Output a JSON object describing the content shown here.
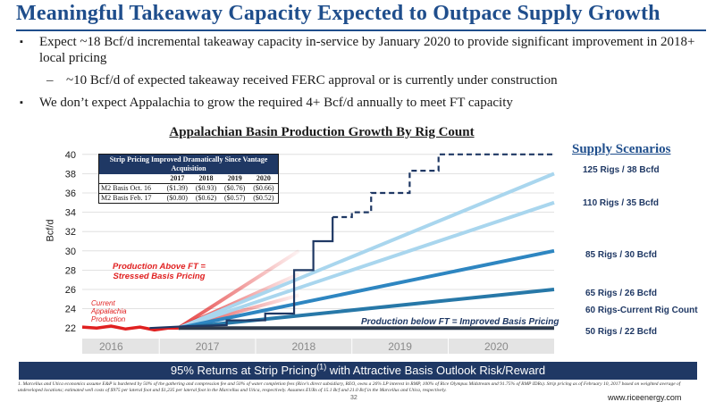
{
  "title": "Meaningful Takeaway Capacity Expected to Outpace Supply Growth",
  "bullets": [
    "Expect ~18 Bcf/d incremental takeaway capacity in-service by January 2020 to provide significant improvement in 2018+ local pricing",
    "~10 Bcf/d of expected takeaway received FERC approval or is currently under construction",
    "We don’t expect Appalachia to grow the required 4+ Bcf/d annually to meet FT capacity"
  ],
  "bullet_markers": {
    "main": "▪",
    "sub": "–"
  },
  "chart_title": "Appalachian Basin Production Growth By Rig Count",
  "panel": {
    "title": "Strip Pricing Improved Dramatically Since Vantage Acquisition",
    "years": [
      "2017",
      "2018",
      "2019",
      "2020"
    ],
    "rows": [
      {
        "label": "M2 Basis Oct. 16",
        "values": [
          "($1.39)",
          "($0.93)",
          "($0.76)",
          "($0.66)"
        ]
      },
      {
        "label": "M2 Basis Feb. 17",
        "values": [
          "($0.80)",
          "($0.62)",
          "($0.57)",
          "($0.52)"
        ]
      }
    ]
  },
  "scenario_title": "Supply Scenarios",
  "scenarios": [
    "125 Rigs / 38 Bcfd",
    "110 Rigs / 35 Bcfd",
    "85 Rigs / 30 Bcfd",
    "65 Rigs / 26 Bcfd",
    "60 Rigs-Current Rig Count",
    "50 Rigs / 22 Bcfd"
  ],
  "annotations": {
    "above_ft": "Production Above FT = Stressed Basis Pricing",
    "current": "Current Appalachia Production",
    "below_ft": "Production below FT = Improved Basis Pricing"
  },
  "banner": {
    "text": "95% Returns at Strip Pricing",
    "sup": "(1)",
    "rest": " with Attractive Basis Outlook Risk/Reward"
  },
  "footnote": "1.   Marcellus and Utica economics assume E&P is burdened by 50% of the gathering and compression fee and 50% of water completion fees (Rice’s direct subsidiary, REO, owns a 26% LP interest in RMP, 100% of Rice Olympus Midstream and 91.75% of RMP IDRs). Strip pricing as of February 10, 2017 based on weighted average of undeveloped locations; estimated well costs of $975 per lateral foot and $1,235 per lateral foot in the Marcellus and Utica, respectively. Assumes EURs of 15.1 Bcf and 21.0 Bcf in the Marcellus and Utica, respectively.",
  "page_number": "32",
  "website": "www.riceenergy.com",
  "colors": {
    "brand": "#1f4e8c",
    "navy": "#1f3864",
    "red": "#e02020"
  },
  "chart_data": {
    "type": "line",
    "ylabel": "Bcf/d",
    "xlabel": "",
    "ylim": [
      21,
      41
    ],
    "yticks": [
      22,
      24,
      26,
      28,
      30,
      32,
      34,
      36,
      38,
      40
    ],
    "xlim": [
      2015.7,
      2020.6
    ],
    "x_tick_labels": [
      "2016",
      "2017",
      "2018",
      "2019",
      "2020"
    ],
    "series": [
      {
        "line": "navy-dashed-step",
        "points": [
          [
            2016.4,
            22.0
          ],
          [
            2016.8,
            22.2
          ],
          [
            2017.2,
            22.3
          ],
          [
            2017.2,
            22.8
          ],
          [
            2017.6,
            22.8
          ],
          [
            2017.6,
            23.5
          ],
          [
            2017.9,
            23.5
          ],
          [
            2017.9,
            28.0
          ],
          [
            2018.1,
            28.0
          ],
          [
            2018.1,
            31.0
          ],
          [
            2018.3,
            31.0
          ],
          [
            2018.3,
            33.5
          ],
          [
            2018.5,
            33.5
          ],
          [
            2018.5,
            34.0
          ],
          [
            2018.7,
            34.0
          ],
          [
            2018.7,
            36.0
          ],
          [
            2019.1,
            36.0
          ],
          [
            2019.1,
            38.3
          ],
          [
            2019.4,
            38.3
          ],
          [
            2019.4,
            40.0
          ],
          [
            2020.6,
            40.0
          ]
        ]
      },
      {
        "name": "125 Rigs / 38 Bcfd",
        "color": "#a9d6ee",
        "points": [
          [
            2016.7,
            22.0
          ],
          [
            2020.6,
            38.0
          ]
        ]
      },
      {
        "name": "110 Rigs / 35 Bcfd",
        "color": "#a9d6ee",
        "points": [
          [
            2016.7,
            22.0
          ],
          [
            2020.6,
            35.0
          ]
        ]
      },
      {
        "name": "85 Rigs / 30 Bcfd",
        "color": "#2e86c1",
        "points": [
          [
            2016.7,
            22.0
          ],
          [
            2020.6,
            30.0
          ]
        ]
      },
      {
        "name": "65 Rigs / 26 Bcfd",
        "color": "#2778a8",
        "points": [
          [
            2016.7,
            22.0
          ],
          [
            2020.6,
            26.0
          ]
        ]
      },
      {
        "name": "50 Rigs / 22 Bcfd",
        "color": "#2f3b4c",
        "points": [
          [
            2016.7,
            22.0
          ],
          [
            2020.6,
            22.0
          ]
        ]
      },
      {
        "line": "current-production",
        "color": "#e02020",
        "points": [
          [
            2015.7,
            22.1
          ],
          [
            2015.85,
            22.0
          ],
          [
            2016.0,
            22.2
          ],
          [
            2016.15,
            21.9
          ],
          [
            2016.3,
            22.1
          ],
          [
            2016.45,
            21.8
          ],
          [
            2016.6,
            22.0
          ],
          [
            2016.7,
            22.0
          ]
        ]
      }
    ]
  }
}
